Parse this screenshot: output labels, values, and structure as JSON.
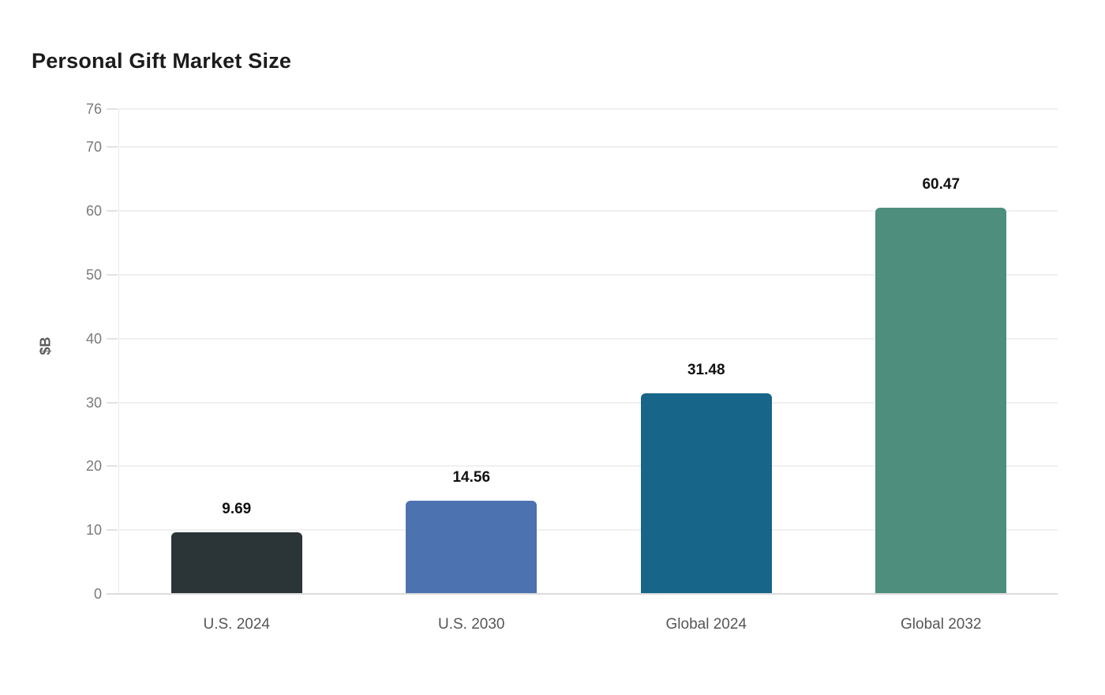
{
  "chart_data": {
    "type": "bar",
    "title": "Personal Gift Market Size",
    "xlabel": "",
    "ylabel": "$B",
    "categories": [
      "U.S. 2024",
      "U.S. 2030",
      "Global 2024",
      "Global 2032"
    ],
    "values": [
      9.69,
      14.56,
      31.48,
      60.47
    ],
    "value_labels": [
      "9.69",
      "14.56",
      "31.48",
      "60.47"
    ],
    "bar_colors": [
      "#2B3537",
      "#4C72B0",
      "#176589",
      "#4E8E7C"
    ],
    "yticks": [
      0,
      10,
      20,
      30,
      40,
      50,
      60,
      70,
      76
    ],
    "ylim": [
      0,
      76
    ],
    "grid": "horizontal",
    "legend_position": "none",
    "background_color": "#ffffff",
    "title_color": "#1c1c1c",
    "tick_label_color": "#7a7a7a",
    "category_label_color": "#565656",
    "value_label_color": "#111111"
  }
}
